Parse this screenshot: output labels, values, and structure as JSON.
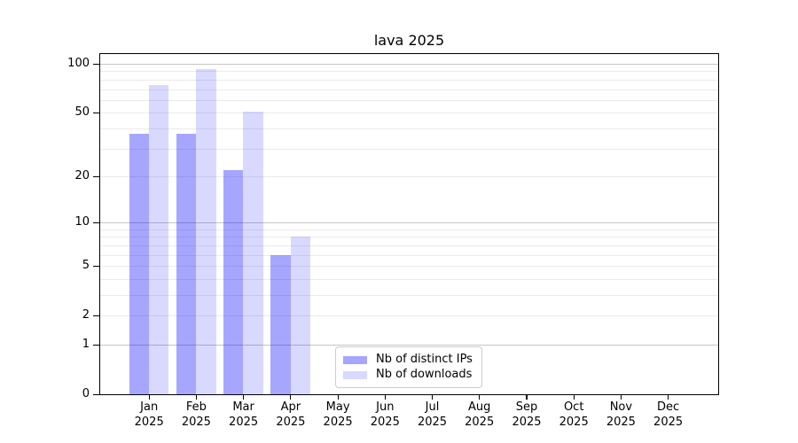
{
  "chart_data": {
    "type": "bar",
    "title": "lava 2025",
    "y_scale": "log1p",
    "ylim": [
      0,
      114
    ],
    "yticks": [
      0,
      1,
      2,
      5,
      10,
      20,
      50,
      100
    ],
    "major_gridlines": [
      1,
      10,
      100
    ],
    "minor_gridlines": [
      2,
      3,
      4,
      5,
      6,
      7,
      8,
      9,
      20,
      30,
      40,
      50,
      60,
      70,
      80,
      90
    ],
    "grid": true,
    "legend_position": "inside lower-center",
    "categories": [
      {
        "month": "Jan",
        "year": "2025"
      },
      {
        "month": "Feb",
        "year": "2025"
      },
      {
        "month": "Mar",
        "year": "2025"
      },
      {
        "month": "Apr",
        "year": "2025"
      },
      {
        "month": "May",
        "year": "2025"
      },
      {
        "month": "Jun",
        "year": "2025"
      },
      {
        "month": "Jul",
        "year": "2025"
      },
      {
        "month": "Aug",
        "year": "2025"
      },
      {
        "month": "Sep",
        "year": "2025"
      },
      {
        "month": "Oct",
        "year": "2025"
      },
      {
        "month": "Nov",
        "year": "2025"
      },
      {
        "month": "Dec",
        "year": "2025"
      }
    ],
    "series": [
      {
        "name": "Nb of distinct IPs",
        "color": "rgba(0,0,255,0.35)",
        "values": [
          37,
          37,
          22,
          6,
          0,
          0,
          0,
          0,
          0,
          0,
          0,
          0
        ]
      },
      {
        "name": "Nb of downloads",
        "color": "rgba(0,0,255,0.15)",
        "values": [
          74,
          93,
          51,
          8,
          0,
          0,
          0,
          0,
          0,
          0,
          0,
          0
        ]
      }
    ]
  },
  "colors": {
    "spine": "#000000",
    "major_grid": "#c6c6c6",
    "minor_grid": "#ebebeb",
    "tick_label": "#000000",
    "legend_border": "#cccccc"
  }
}
